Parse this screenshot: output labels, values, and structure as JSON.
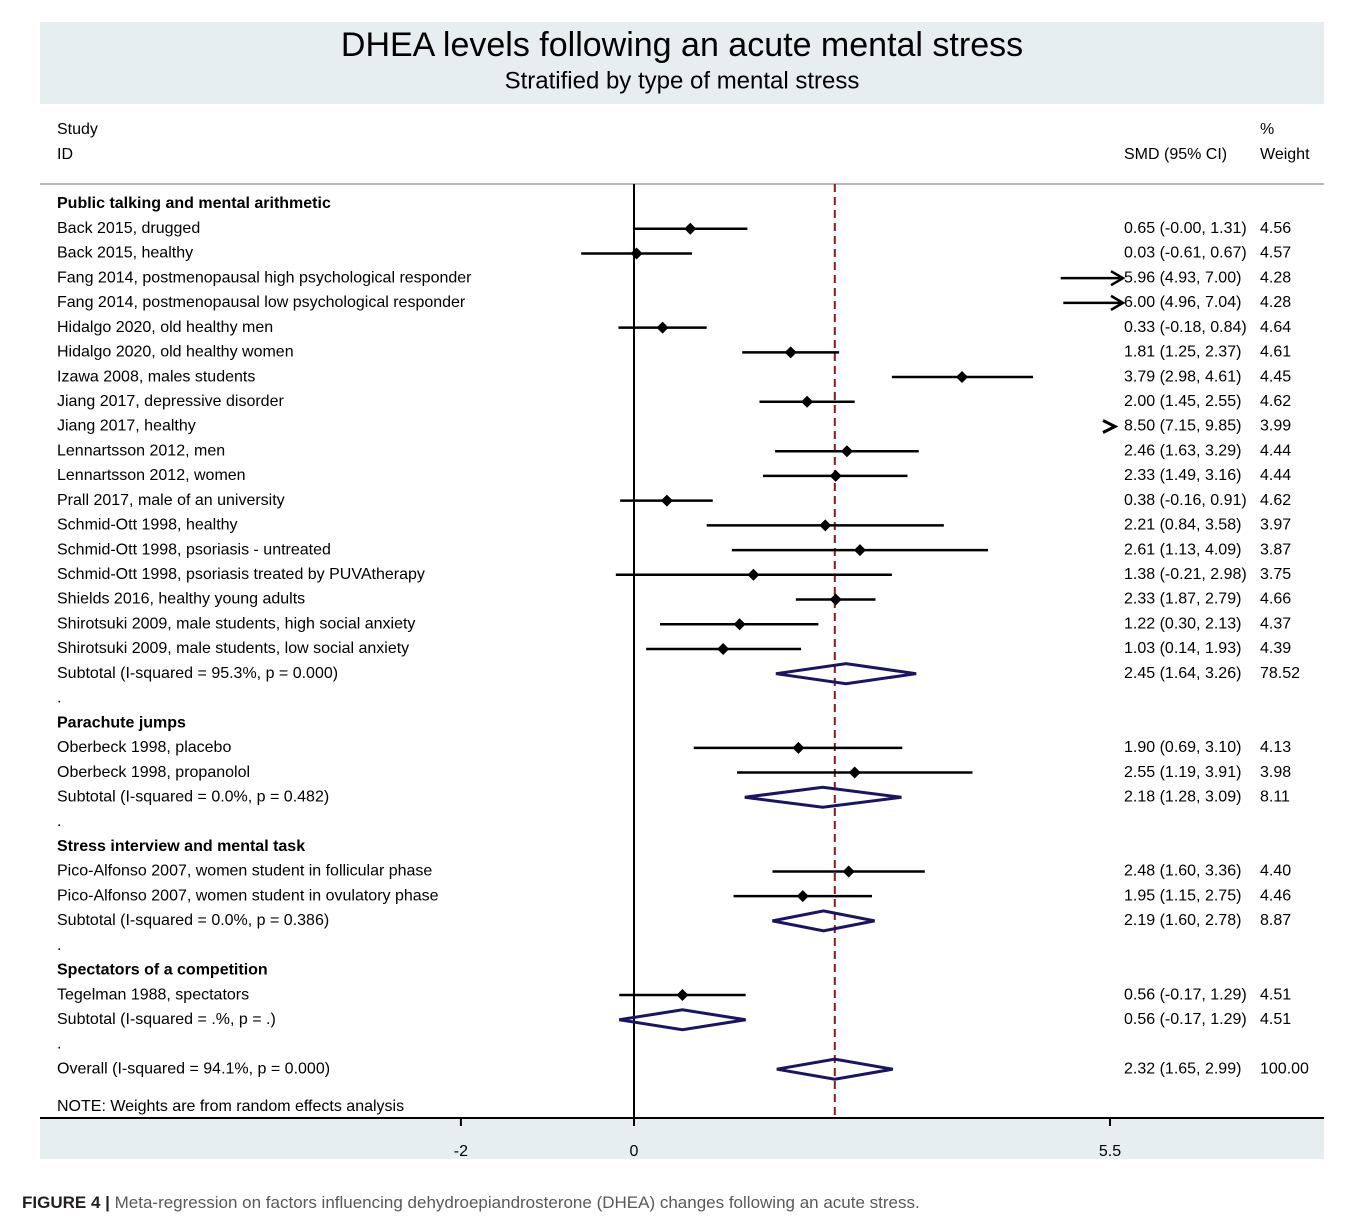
{
  "chart_data": {
    "type": "forest",
    "title": "DHEA levels following an acute mental stress",
    "subtitle": "Stratified by type of mental stress",
    "header": {
      "study_line1": "Study",
      "study_line2": "ID",
      "effect": "SMD (95% CI)",
      "weight_line1": "%",
      "weight_line2": "Weight"
    },
    "x_ticks": [
      "-2",
      "0",
      "5.5"
    ],
    "x_tick_values": [
      -2,
      0,
      5.5
    ],
    "reference_line": 0,
    "overall_line": 2.32,
    "note": "NOTE: Weights are from random effects analysis",
    "rows": [
      {
        "kind": "group",
        "label": "Public talking and mental arithmetic"
      },
      {
        "kind": "study",
        "label": "Back 2015, drugged",
        "est": 0.65,
        "lo": -0.0,
        "hi": 1.31,
        "ci_text": "0.65 (-0.00, 1.31)",
        "weight": "4.56"
      },
      {
        "kind": "study",
        "label": "Back 2015, healthy",
        "est": 0.03,
        "lo": -0.61,
        "hi": 0.67,
        "ci_text": "0.03 (-0.61, 0.67)",
        "weight": "4.57"
      },
      {
        "kind": "study",
        "label": "Fang 2014, postmenopausal high psychological responder",
        "est": 5.96,
        "lo": 4.93,
        "hi": 7.0,
        "ci_text": "5.96 (4.93, 7.00)",
        "weight": "4.28"
      },
      {
        "kind": "study",
        "label": "Fang 2014, postmenopausal low psychological responder",
        "est": 6.0,
        "lo": 4.96,
        "hi": 7.04,
        "ci_text": "6.00 (4.96, 7.04)",
        "weight": "4.28"
      },
      {
        "kind": "study",
        "label": "Hidalgo 2020, old healthy men",
        "est": 0.33,
        "lo": -0.18,
        "hi": 0.84,
        "ci_text": "0.33 (-0.18, 0.84)",
        "weight": "4.64"
      },
      {
        "kind": "study",
        "label": "Hidalgo 2020, old healthy women",
        "est": 1.81,
        "lo": 1.25,
        "hi": 2.37,
        "ci_text": "1.81 (1.25, 2.37)",
        "weight": "4.61"
      },
      {
        "kind": "study",
        "label": "Izawa 2008, males students",
        "est": 3.79,
        "lo": 2.98,
        "hi": 4.61,
        "ci_text": "3.79 (2.98, 4.61)",
        "weight": "4.45"
      },
      {
        "kind": "study",
        "label": "Jiang 2017, depressive disorder",
        "est": 2.0,
        "lo": 1.45,
        "hi": 2.55,
        "ci_text": "2.00 (1.45, 2.55)",
        "weight": "4.62"
      },
      {
        "kind": "study",
        "label": "Jiang 2017, healthy",
        "est": 8.5,
        "lo": 7.15,
        "hi": 9.85,
        "ci_text": "8.50 (7.15, 9.85)",
        "weight": "3.99"
      },
      {
        "kind": "study",
        "label": "Lennartsson 2012, men",
        "est": 2.46,
        "lo": 1.63,
        "hi": 3.29,
        "ci_text": "2.46 (1.63, 3.29)",
        "weight": "4.44"
      },
      {
        "kind": "study",
        "label": "Lennartsson 2012, women",
        "est": 2.33,
        "lo": 1.49,
        "hi": 3.16,
        "ci_text": "2.33 (1.49, 3.16)",
        "weight": "4.44"
      },
      {
        "kind": "study",
        "label": "Prall 2017, male of an university",
        "est": 0.38,
        "lo": -0.16,
        "hi": 0.91,
        "ci_text": "0.38 (-0.16, 0.91)",
        "weight": "4.62"
      },
      {
        "kind": "study",
        "label": "Schmid-Ott 1998, healthy",
        "est": 2.21,
        "lo": 0.84,
        "hi": 3.58,
        "ci_text": "2.21 (0.84, 3.58)",
        "weight": "3.97"
      },
      {
        "kind": "study",
        "label": "Schmid-Ott 1998, psoriasis - untreated",
        "est": 2.61,
        "lo": 1.13,
        "hi": 4.09,
        "ci_text": "2.61 (1.13, 4.09)",
        "weight": "3.87"
      },
      {
        "kind": "study",
        "label": "Schmid-Ott 1998, psoriasis treated by PUVAtherapy",
        "est": 1.38,
        "lo": -0.21,
        "hi": 2.98,
        "ci_text": "1.38 (-0.21, 2.98)",
        "weight": "3.75"
      },
      {
        "kind": "study",
        "label": "Shields 2016, healthy young adults",
        "est": 2.33,
        "lo": 1.87,
        "hi": 2.79,
        "ci_text": "2.33 (1.87, 2.79)",
        "weight": "4.66"
      },
      {
        "kind": "study",
        "label": "Shirotsuki 2009, male students, high social anxiety",
        "est": 1.22,
        "lo": 0.3,
        "hi": 2.13,
        "ci_text": "1.22 (0.30, 2.13)",
        "weight": "4.37"
      },
      {
        "kind": "study",
        "label": "Shirotsuki 2009, male students, low social anxiety",
        "est": 1.03,
        "lo": 0.14,
        "hi": 1.93,
        "ci_text": "1.03 (0.14, 1.93)",
        "weight": "4.39"
      },
      {
        "kind": "subtotal",
        "label": "Subtotal  (I-squared = 95.3%, p = 0.000)",
        "est": 2.45,
        "lo": 1.64,
        "hi": 3.26,
        "ci_text": "2.45 (1.64, 3.26)",
        "weight": "78.52"
      },
      {
        "kind": "dot",
        "label": "."
      },
      {
        "kind": "group",
        "label": "Parachute jumps"
      },
      {
        "kind": "study",
        "label": "Oberbeck 1998, placebo",
        "est": 1.9,
        "lo": 0.69,
        "hi": 3.1,
        "ci_text": "1.90 (0.69, 3.10)",
        "weight": "4.13"
      },
      {
        "kind": "study",
        "label": "Oberbeck 1998, propanolol",
        "est": 2.55,
        "lo": 1.19,
        "hi": 3.91,
        "ci_text": "2.55 (1.19, 3.91)",
        "weight": "3.98"
      },
      {
        "kind": "subtotal",
        "label": "Subtotal  (I-squared = 0.0%, p = 0.482)",
        "est": 2.18,
        "lo": 1.28,
        "hi": 3.09,
        "ci_text": "2.18 (1.28, 3.09)",
        "weight": "8.11"
      },
      {
        "kind": "dot",
        "label": "."
      },
      {
        "kind": "group",
        "label": "Stress interview and mental task"
      },
      {
        "kind": "study",
        "label": "Pico-Alfonso 2007, women student in follicular phase",
        "est": 2.48,
        "lo": 1.6,
        "hi": 3.36,
        "ci_text": "2.48 (1.60, 3.36)",
        "weight": "4.40"
      },
      {
        "kind": "study",
        "label": "Pico-Alfonso 2007, women student in ovulatory phase",
        "est": 1.95,
        "lo": 1.15,
        "hi": 2.75,
        "ci_text": "1.95 (1.15, 2.75)",
        "weight": "4.46"
      },
      {
        "kind": "subtotal",
        "label": "Subtotal  (I-squared = 0.0%, p = 0.386)",
        "est": 2.19,
        "lo": 1.6,
        "hi": 2.78,
        "ci_text": "2.19 (1.60, 2.78)",
        "weight": "8.87"
      },
      {
        "kind": "dot",
        "label": "."
      },
      {
        "kind": "group",
        "label": "Spectators of a competition"
      },
      {
        "kind": "study",
        "label": "Tegelman 1988, spectators",
        "est": 0.56,
        "lo": -0.17,
        "hi": 1.29,
        "ci_text": "0.56 (-0.17, 1.29)",
        "weight": "4.51"
      },
      {
        "kind": "subtotal",
        "label": "Subtotal  (I-squared = .%, p = .)",
        "est": 0.56,
        "lo": -0.17,
        "hi": 1.29,
        "ci_text": "0.56 (-0.17, 1.29)",
        "weight": "4.51"
      },
      {
        "kind": "dot",
        "label": "."
      },
      {
        "kind": "subtotal",
        "label": "Overall  (I-squared = 94.1%, p = 0.000)",
        "est": 2.32,
        "lo": 1.65,
        "hi": 2.99,
        "ci_text": "2.32 (1.65, 2.99)",
        "weight": "100.00"
      }
    ]
  },
  "caption": {
    "label": "FIGURE 4 |",
    "text": " Meta-regression on factors influencing dehydroepiandrosterone (DHEA) changes following an acute stress."
  },
  "colors": {
    "title_band": "#e6eef0",
    "diamond": "#1b1464",
    "overall_line": "#8b1a1a",
    "axis": "#000000",
    "rule": "#b8b8b8"
  }
}
